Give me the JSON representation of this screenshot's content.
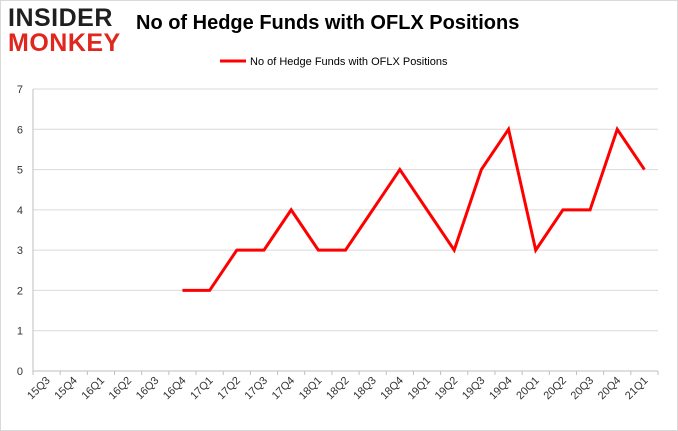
{
  "logo": {
    "line1": "INSIDER",
    "line2": "MONKEY"
  },
  "chart_data": {
    "type": "line",
    "title": "No of Hedge Funds with OFLX Positions",
    "xlabel": "",
    "ylabel": "",
    "categories": [
      "15Q3",
      "15Q4",
      "16Q1",
      "16Q2",
      "16Q3",
      "16Q4",
      "17Q1",
      "17Q2",
      "17Q3",
      "17Q4",
      "18Q1",
      "18Q2",
      "18Q3",
      "18Q4",
      "19Q1",
      "19Q2",
      "19Q3",
      "19Q4",
      "20Q1",
      "20Q2",
      "20Q3",
      "20Q4",
      "21Q1"
    ],
    "series": [
      {
        "name": "No of Hedge Funds with OFLX Positions",
        "color": "#ff0000",
        "values": [
          null,
          null,
          null,
          null,
          null,
          2,
          2,
          3,
          3,
          4,
          3,
          3,
          4,
          5,
          4,
          3,
          5,
          6,
          3,
          4,
          4,
          6,
          5
        ]
      }
    ],
    "ylim": [
      0,
      7
    ],
    "yticks": [
      0,
      1,
      2,
      3,
      4,
      5,
      6,
      7
    ],
    "grid": true,
    "legend_position": "top-center"
  }
}
